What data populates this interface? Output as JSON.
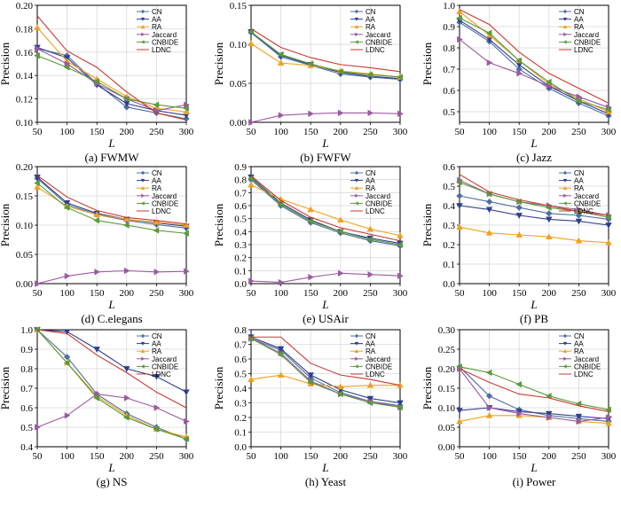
{
  "colors": {
    "CN": "#4f6fa0",
    "AA": "#2f3f8f",
    "RA": "#f0a020",
    "Jaccard": "#9a5aa0",
    "CNBIDE": "#5a9a3a",
    "LDNC": "#c83a30"
  },
  "chart_data": [
    {
      "type": "line",
      "caption": "(a) FWMW",
      "xlabel": "L",
      "ylabel": "Precision",
      "x": [
        50,
        100,
        150,
        200,
        250,
        300
      ],
      "xticks": [
        50,
        100,
        150,
        200,
        250,
        300
      ],
      "ylim": [
        0.1,
        0.2
      ],
      "yticks": [
        "0.10",
        "0.12",
        "0.14",
        "0.16",
        "0.18",
        "0.20"
      ],
      "legend": [
        "CN",
        "AA",
        "RA",
        "Jaccard",
        "CNBIDE",
        "LDNC"
      ],
      "series": [
        {
          "name": "CN",
          "values": [
            0.163,
            0.157,
            0.133,
            0.113,
            0.108,
            0.103
          ]
        },
        {
          "name": "AA",
          "values": [
            0.164,
            0.155,
            0.132,
            0.116,
            0.11,
            0.106
          ]
        },
        {
          "name": "RA",
          "values": [
            0.181,
            0.152,
            0.137,
            0.122,
            0.112,
            0.109
          ]
        },
        {
          "name": "Jaccard",
          "values": [
            0.163,
            0.15,
            0.133,
            0.12,
            0.11,
            0.115
          ]
        },
        {
          "name": "CNBIDE",
          "values": [
            0.157,
            0.147,
            0.135,
            0.12,
            0.115,
            0.112
          ]
        },
        {
          "name": "LDNC",
          "values": [
            0.191,
            0.161,
            0.147,
            0.126,
            0.108,
            0.102
          ]
        }
      ]
    },
    {
      "type": "line",
      "caption": "(b) FWFW",
      "xlabel": "L",
      "ylabel": "Precision",
      "x": [
        50,
        100,
        150,
        200,
        250,
        300
      ],
      "xticks": [
        50,
        100,
        150,
        200,
        250,
        300
      ],
      "ylim": [
        0.0,
        0.15
      ],
      "yticks": [
        "0.00",
        "0.05",
        "0.10",
        "0.15"
      ],
      "legend": [
        "CN",
        "AA",
        "RA",
        "Jaccard",
        "CNBIDE",
        "LDNC"
      ],
      "series": [
        {
          "name": "CN",
          "values": [
            0.115,
            0.084,
            0.073,
            0.062,
            0.058,
            0.055
          ]
        },
        {
          "name": "AA",
          "values": [
            0.116,
            0.086,
            0.074,
            0.064,
            0.059,
            0.056
          ]
        },
        {
          "name": "RA",
          "values": [
            0.101,
            0.076,
            0.073,
            0.066,
            0.062,
            0.058
          ]
        },
        {
          "name": "Jaccard",
          "values": [
            0.0,
            0.009,
            0.011,
            0.012,
            0.012,
            0.011
          ]
        },
        {
          "name": "CNBIDE",
          "values": [
            0.116,
            0.087,
            0.075,
            0.065,
            0.061,
            0.058
          ]
        },
        {
          "name": "LDNC",
          "values": [
            0.12,
            0.096,
            0.083,
            0.074,
            0.07,
            0.065
          ]
        }
      ]
    },
    {
      "type": "line",
      "caption": "(c) Jazz",
      "xlabel": "L",
      "ylabel": "Precision",
      "x": [
        50,
        100,
        150,
        200,
        250,
        300
      ],
      "xticks": [
        50,
        100,
        150,
        200,
        250,
        300
      ],
      "ylim": [
        0.45,
        1.0
      ],
      "yticks": [
        "0.5",
        "0.6",
        "0.7",
        "0.8",
        "0.9",
        "1.0"
      ],
      "legend": [
        "CN",
        "AA",
        "RA",
        "Jaccard",
        "CNBIDE",
        "LDNC"
      ],
      "series": [
        {
          "name": "CN",
          "values": [
            0.92,
            0.83,
            0.7,
            0.61,
            0.54,
            0.48
          ]
        },
        {
          "name": "AA",
          "values": [
            0.93,
            0.84,
            0.72,
            0.62,
            0.55,
            0.49
          ]
        },
        {
          "name": "RA",
          "values": [
            0.97,
            0.86,
            0.74,
            0.63,
            0.56,
            0.5
          ]
        },
        {
          "name": "Jaccard",
          "values": [
            0.84,
            0.73,
            0.68,
            0.62,
            0.57,
            0.52
          ]
        },
        {
          "name": "CNBIDE",
          "values": [
            0.94,
            0.87,
            0.74,
            0.64,
            0.55,
            0.51
          ]
        },
        {
          "name": "LDNC",
          "values": [
            0.98,
            0.91,
            0.78,
            0.68,
            0.61,
            0.54
          ]
        }
      ]
    },
    {
      "type": "line",
      "caption": "(d) C.elegans",
      "xlabel": "L",
      "ylabel": "Precision",
      "x": [
        50,
        100,
        150,
        200,
        250,
        300
      ],
      "xticks": [
        50,
        100,
        150,
        200,
        250,
        300
      ],
      "ylim": [
        0.0,
        0.2
      ],
      "yticks": [
        "0.00",
        "0.05",
        "0.10",
        "0.15",
        "0.20"
      ],
      "legend": [
        "CN",
        "AA",
        "RA",
        "Jaccard",
        "CNBIDE",
        "LDNC"
      ],
      "series": [
        {
          "name": "CN",
          "values": [
            0.18,
            0.135,
            0.118,
            0.108,
            0.101,
            0.095
          ]
        },
        {
          "name": "AA",
          "values": [
            0.182,
            0.138,
            0.12,
            0.11,
            0.104,
            0.098
          ]
        },
        {
          "name": "RA",
          "values": [
            0.165,
            0.132,
            0.118,
            0.11,
            0.105,
            0.1
          ]
        },
        {
          "name": "Jaccard",
          "values": [
            0.0,
            0.013,
            0.02,
            0.022,
            0.02,
            0.021
          ]
        },
        {
          "name": "CNBIDE",
          "values": [
            0.172,
            0.13,
            0.108,
            0.1,
            0.091,
            0.086
          ]
        },
        {
          "name": "LDNC",
          "values": [
            0.185,
            0.148,
            0.125,
            0.113,
            0.108,
            0.102
          ]
        }
      ]
    },
    {
      "type": "line",
      "caption": "(e) USAir",
      "xlabel": "L",
      "ylabel": "Precision",
      "x": [
        50,
        100,
        150,
        200,
        250,
        300
      ],
      "xticks": [
        50,
        100,
        150,
        200,
        250,
        300
      ],
      "ylim": [
        0.0,
        0.9
      ],
      "yticks": [
        "0.0",
        "0.1",
        "0.2",
        "0.3",
        "0.4",
        "0.5",
        "0.6",
        "0.7",
        "0.8",
        "0.9"
      ],
      "legend": [
        "CN",
        "AA",
        "RA",
        "Jaccard",
        "CNBIDE",
        "LDNC"
      ],
      "series": [
        {
          "name": "CN",
          "values": [
            0.8,
            0.6,
            0.47,
            0.39,
            0.33,
            0.29
          ]
        },
        {
          "name": "AA",
          "values": [
            0.82,
            0.62,
            0.49,
            0.4,
            0.35,
            0.31
          ]
        },
        {
          "name": "RA",
          "values": [
            0.76,
            0.65,
            0.57,
            0.49,
            0.42,
            0.37
          ]
        },
        {
          "name": "Jaccard",
          "values": [
            0.02,
            0.01,
            0.05,
            0.08,
            0.07,
            0.06
          ]
        },
        {
          "name": "CNBIDE",
          "values": [
            0.81,
            0.61,
            0.48,
            0.4,
            0.34,
            0.3
          ]
        },
        {
          "name": "LDNC",
          "values": [
            0.83,
            0.64,
            0.51,
            0.43,
            0.38,
            0.33
          ]
        }
      ]
    },
    {
      "type": "line",
      "caption": "(f) PB",
      "xlabel": "L",
      "ylabel": "Precision",
      "x": [
        50,
        100,
        150,
        200,
        250,
        300
      ],
      "xticks": [
        50,
        100,
        150,
        200,
        250,
        300
      ],
      "ylim": [
        0.0,
        0.6
      ],
      "yticks": [
        "0.0",
        "0.1",
        "0.2",
        "0.3",
        "0.4",
        "0.5",
        "0.6"
      ],
      "legend": [
        "CN",
        "AA",
        "RA",
        "Jaccard",
        "CNBIDE",
        "LDNC"
      ],
      "series": [
        {
          "name": "CN",
          "values": [
            0.45,
            0.42,
            0.39,
            0.36,
            0.35,
            0.33
          ]
        },
        {
          "name": "AA",
          "values": [
            0.4,
            0.38,
            0.35,
            0.33,
            0.32,
            0.3
          ]
        },
        {
          "name": "RA",
          "values": [
            0.29,
            0.26,
            0.25,
            0.24,
            0.22,
            0.21
          ]
        },
        {
          "name": "Jaccard",
          "values": [
            0.53,
            0.46,
            0.42,
            0.4,
            0.38,
            0.35
          ]
        },
        {
          "name": "CNBIDE",
          "values": [
            0.52,
            0.46,
            0.42,
            0.39,
            0.37,
            0.34
          ]
        },
        {
          "name": "LDNC",
          "values": [
            0.56,
            0.47,
            0.43,
            0.4,
            0.37,
            0.35
          ]
        }
      ]
    },
    {
      "type": "line",
      "caption": "(g) NS",
      "xlabel": "L",
      "ylabel": "Precision",
      "x": [
        50,
        100,
        150,
        200,
        250,
        300
      ],
      "xticks": [
        50,
        100,
        150,
        200,
        250,
        300
      ],
      "ylim": [
        0.4,
        1.0
      ],
      "yticks": [
        "0.4",
        "0.5",
        "0.6",
        "0.7",
        "0.8",
        "0.9",
        "1.0"
      ],
      "legend": [
        "CN",
        "AA",
        "RA",
        "Jaccard",
        "CNBIDE",
        "LDNC"
      ],
      "series": [
        {
          "name": "CN",
          "values": [
            1.0,
            0.86,
            0.67,
            0.57,
            0.5,
            0.44
          ]
        },
        {
          "name": "AA",
          "values": [
            1.0,
            0.99,
            0.9,
            0.8,
            0.76,
            0.68
          ]
        },
        {
          "name": "RA",
          "values": [
            1.0,
            0.83,
            0.66,
            0.56,
            0.49,
            0.45
          ]
        },
        {
          "name": "Jaccard",
          "values": [
            0.5,
            0.56,
            0.67,
            0.65,
            0.6,
            0.53
          ]
        },
        {
          "name": "CNBIDE",
          "values": [
            1.0,
            0.83,
            0.65,
            0.55,
            0.49,
            0.44
          ]
        },
        {
          "name": "LDNC",
          "values": [
            1.0,
            0.98,
            0.87,
            0.78,
            0.68,
            0.6
          ]
        }
      ]
    },
    {
      "type": "line",
      "caption": "(h) Yeast",
      "xlabel": "L",
      "ylabel": "Precision",
      "x": [
        50,
        100,
        150,
        200,
        250,
        300
      ],
      "xticks": [
        50,
        100,
        150,
        200,
        250,
        300
      ],
      "ylim": [
        0.0,
        0.8
      ],
      "yticks": [
        "0.0",
        "0.1",
        "0.2",
        "0.3",
        "0.4",
        "0.5",
        "0.6",
        "0.7",
        "0.8"
      ],
      "legend": [
        "CN",
        "AA",
        "RA",
        "Jaccard",
        "CNBIDE",
        "LDNC"
      ],
      "series": [
        {
          "name": "CN",
          "values": [
            0.74,
            0.66,
            0.47,
            0.37,
            0.31,
            0.28
          ]
        },
        {
          "name": "AA",
          "values": [
            0.75,
            0.67,
            0.49,
            0.39,
            0.33,
            0.3
          ]
        },
        {
          "name": "RA",
          "values": [
            0.46,
            0.49,
            0.43,
            0.41,
            0.42,
            0.42
          ]
        },
        {
          "name": "Jaccard",
          "values": [
            0.74,
            0.64,
            0.45,
            0.36,
            0.31,
            0.27
          ]
        },
        {
          "name": "CNBIDE",
          "values": [
            0.74,
            0.63,
            0.44,
            0.36,
            0.3,
            0.27
          ]
        },
        {
          "name": "LDNC",
          "values": [
            0.75,
            0.75,
            0.57,
            0.49,
            0.46,
            0.42
          ]
        }
      ]
    },
    {
      "type": "line",
      "caption": "(i) Power",
      "xlabel": "L",
      "ylabel": "Precision",
      "x": [
        50,
        100,
        150,
        200,
        250,
        300
      ],
      "xticks": [
        50,
        100,
        150,
        200,
        250,
        300
      ],
      "ylim": [
        0.0,
        0.3
      ],
      "yticks": [
        "0.00",
        "0.05",
        "0.10",
        "0.15",
        "0.20",
        "0.25",
        "0.30"
      ],
      "legend": [
        "CN",
        "AA",
        "RA",
        "Jaccard",
        "CNBIDE",
        "LDNC"
      ],
      "series": [
        {
          "name": "CN",
          "values": [
            0.205,
            0.13,
            0.095,
            0.08,
            0.072,
            0.065
          ]
        },
        {
          "name": "AA",
          "values": [
            0.093,
            0.1,
            0.09,
            0.085,
            0.078,
            0.072
          ]
        },
        {
          "name": "RA",
          "values": [
            0.065,
            0.08,
            0.08,
            0.075,
            0.065,
            0.06
          ]
        },
        {
          "name": "Jaccard",
          "values": [
            0.2,
            0.1,
            0.085,
            0.075,
            0.065,
            0.075
          ]
        },
        {
          "name": "CNBIDE",
          "values": [
            0.205,
            0.19,
            0.16,
            0.13,
            0.11,
            0.095
          ]
        },
        {
          "name": "LDNC",
          "values": [
            0.2,
            0.165,
            0.135,
            0.125,
            0.105,
            0.09
          ]
        }
      ]
    }
  ]
}
